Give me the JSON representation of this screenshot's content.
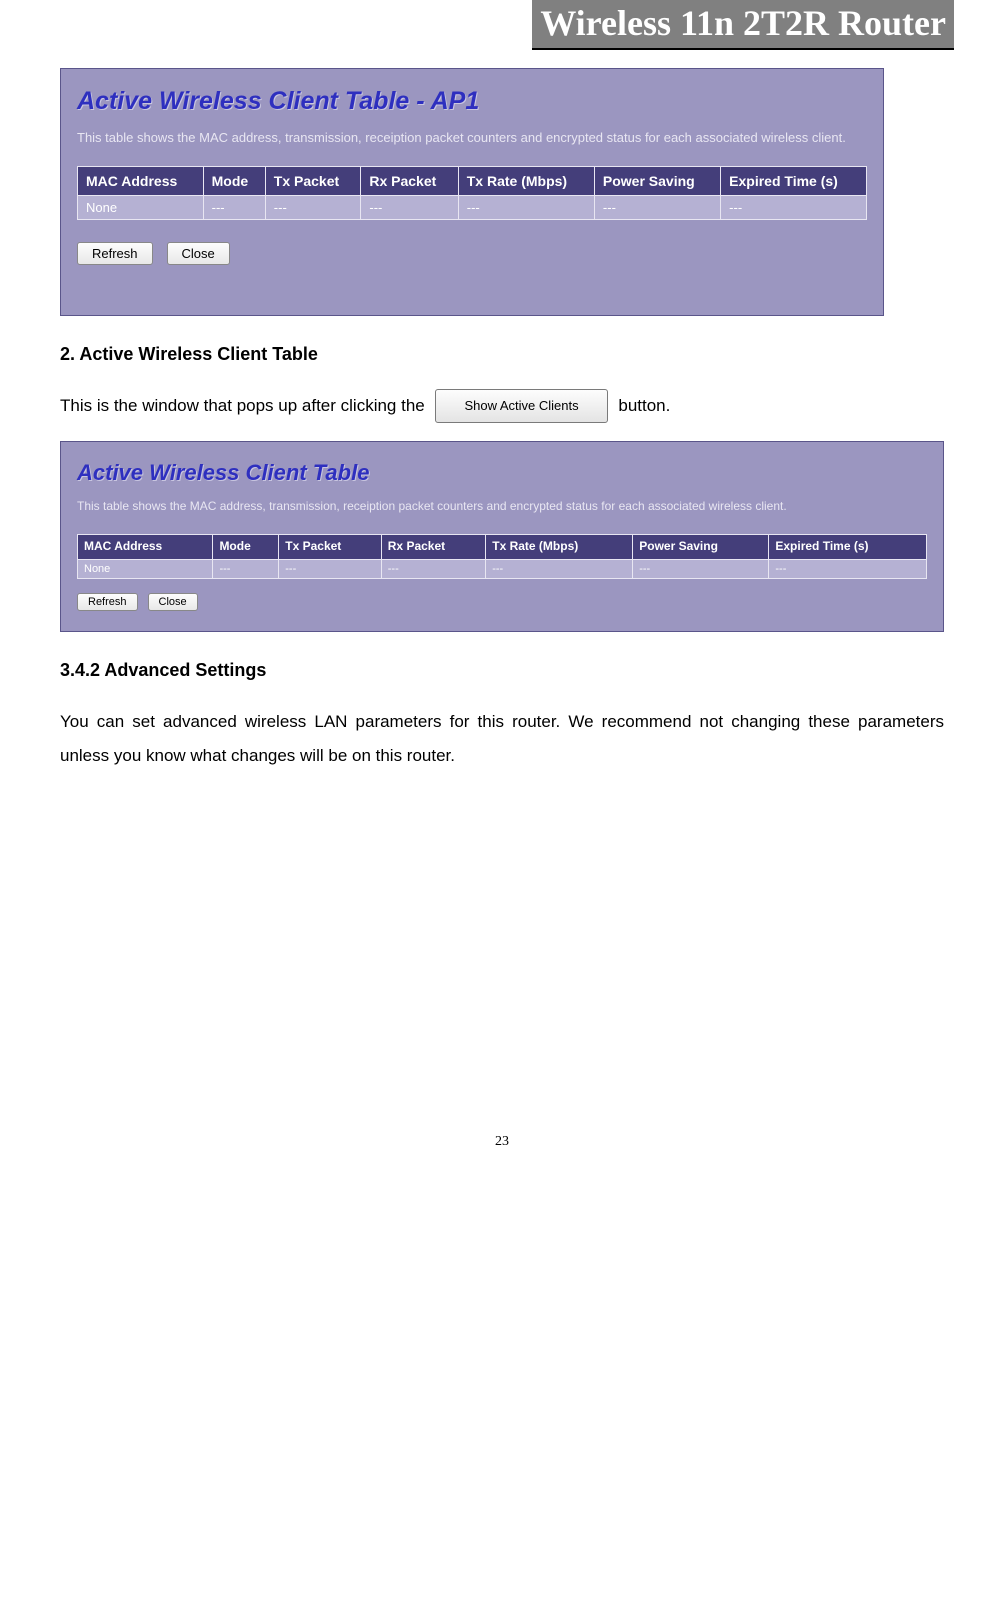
{
  "header": {
    "title": "Wireless 11n 2T2R Router",
    "band_bg": "#808080",
    "band_fg": "#ffffff"
  },
  "panel1": {
    "title": "Active Wireless Client Table - AP1",
    "desc": "This table shows the MAC address, transmission, receiption packet counters and encrypted status for each associated wireless client.",
    "columns": [
      "MAC Address",
      "Mode",
      "Tx Packet",
      "Rx Packet",
      "Tx Rate (Mbps)",
      "Power Saving",
      "Expired Time (s)"
    ],
    "row": [
      "None",
      "---",
      "---",
      "---",
      "---",
      "---",
      "---"
    ],
    "buttons": {
      "refresh": "Refresh",
      "close": "Close"
    },
    "bg": "#9b96c0",
    "header_bg": "#443e7a",
    "row_bg": "#b5b1d3",
    "title_color": "#2e2fbf"
  },
  "section2": {
    "heading": "2. Active Wireless Client Table",
    "para_prefix": "This is the window that pops up after clicking the ",
    "inline_button": "Show Active Clients",
    "para_suffix": " button."
  },
  "panel2": {
    "title": "Active Wireless Client Table",
    "desc": "This table shows the MAC address, transmission, receiption packet counters and encrypted status for each associated wireless client.",
    "columns": [
      "MAC Address",
      "Mode",
      "Tx Packet",
      "Rx Packet",
      "Tx Rate (Mbps)",
      "Power Saving",
      "Expired Time (s)"
    ],
    "row": [
      "None",
      "---",
      "---",
      "---",
      "---",
      "---",
      "---"
    ],
    "buttons": {
      "refresh": "Refresh",
      "close": "Close"
    }
  },
  "section3": {
    "heading": "3.4.2 Advanced Settings",
    "para": "You can set advanced wireless LAN parameters for this router. We recommend not changing these parameters unless you know what changes will be on this router."
  },
  "page_number": "23"
}
